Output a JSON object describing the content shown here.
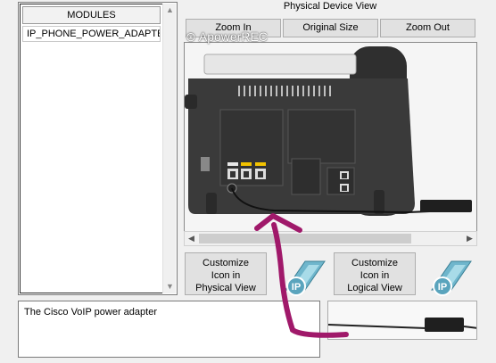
{
  "modules": {
    "header": "MODULES",
    "items": [
      "IP_PHONE_POWER_ADAPTER"
    ]
  },
  "description": "The Cisco VoIP power adapter",
  "physical_view": {
    "title": "Physical Device View",
    "zoom_in": "Zoom In",
    "original_size": "Original Size",
    "zoom_out": "Zoom Out"
  },
  "customize": {
    "physical_line1": "Customize",
    "physical_line2": "Icon in",
    "physical_line3": "Physical View",
    "logical_line1": "Customize",
    "logical_line2": "Icon in",
    "logical_line3": "Logical View"
  },
  "ip_badge": "IP",
  "watermark": "ApowerREC",
  "colors": {
    "arrow": "#a0196a",
    "device": "#3a3a3a",
    "port_label": "#f2c200"
  }
}
